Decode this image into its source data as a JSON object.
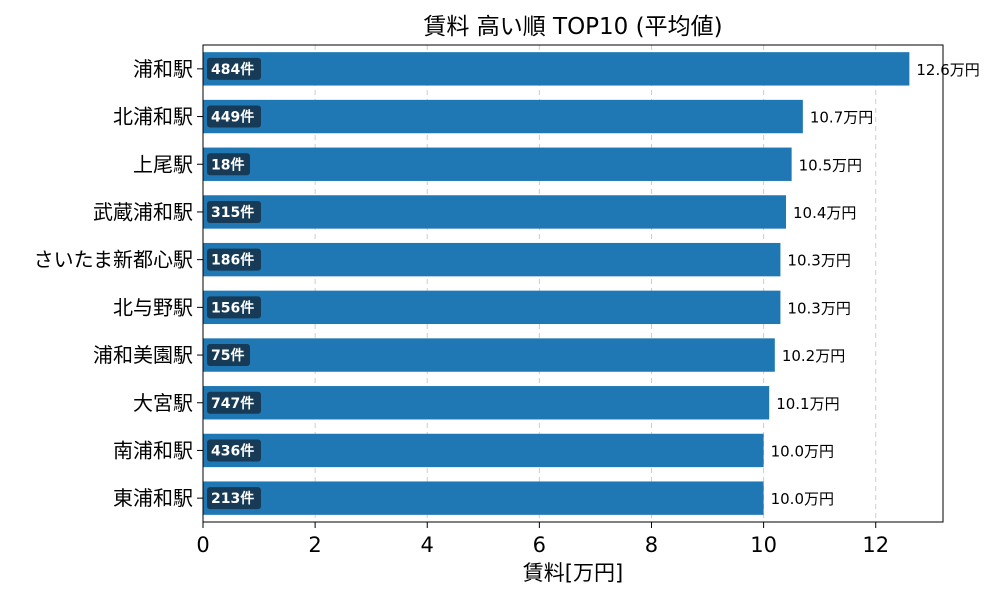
{
  "chart_data": {
    "type": "bar",
    "orientation": "horizontal",
    "title": "賃料 高い順 TOP10 (平均値)",
    "xlabel": "賃料[万円]",
    "ylabel": "",
    "xlim": [
      0,
      13.2
    ],
    "xticks": [
      0,
      2,
      4,
      6,
      8,
      10,
      12
    ],
    "grid": "x-dashed",
    "categories": [
      "浦和駅",
      "北浦和駅",
      "上尾駅",
      "武蔵浦和駅",
      "さいたま新都心駅",
      "北与野駅",
      "浦和美園駅",
      "大宮駅",
      "南浦和駅",
      "東浦和駅"
    ],
    "values": [
      12.6,
      10.7,
      10.5,
      10.4,
      10.3,
      10.3,
      10.2,
      10.1,
      10.0,
      10.0
    ],
    "value_labels": [
      "12.6万円",
      "10.7万円",
      "10.5万円",
      "10.4万円",
      "10.3万円",
      "10.3万円",
      "10.2万円",
      "10.1万円",
      "10.0万円",
      "10.0万円"
    ],
    "counts": [
      484,
      449,
      18,
      315,
      186,
      156,
      75,
      747,
      436,
      213
    ],
    "count_labels": [
      "484件",
      "449件",
      "18件",
      "315件",
      "186件",
      "156件",
      "75件",
      "747件",
      "436件",
      "213件"
    ],
    "colors": {
      "bar": "#1f77b4",
      "badge": "#173b56",
      "grid": "#cccccc"
    }
  }
}
